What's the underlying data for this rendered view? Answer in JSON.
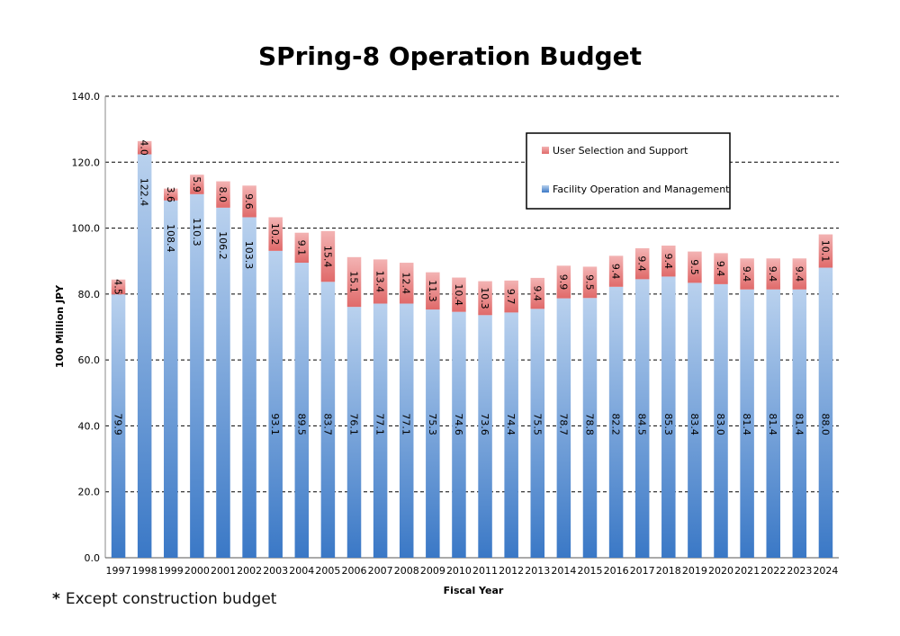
{
  "chart_data": {
    "type": "bar",
    "stacked": true,
    "title": "SPring-8 Operation Budget",
    "xlabel": "Fiscal Year",
    "ylabel": "100 Million JPY",
    "ylim": [
      0,
      140
    ],
    "yticks": [
      "0.0",
      "20.0",
      "40.0",
      "60.0",
      "80.0",
      "100.0",
      "120.0",
      "140.0"
    ],
    "grid": true,
    "legend_position": "top-right",
    "categories": [
      "1997",
      "1998",
      "1999",
      "2000",
      "2001",
      "2002",
      "2003",
      "2004",
      "2005",
      "2006",
      "2007",
      "2008",
      "2009",
      "2010",
      "2011",
      "2012",
      "2013",
      "2014",
      "2015",
      "2016",
      "2017",
      "2018",
      "2019",
      "2020",
      "2021",
      "2022",
      "2023",
      "2024"
    ],
    "series": [
      {
        "name": "Facility Operation and Management",
        "color": "#4a86cc",
        "values": [
          79.9,
          122.4,
          108.4,
          110.3,
          106.2,
          103.3,
          93.1,
          89.5,
          83.7,
          76.1,
          77.1,
          77.1,
          75.3,
          74.6,
          73.6,
          74.4,
          75.5,
          78.7,
          78.8,
          82.2,
          84.5,
          85.3,
          83.4,
          83.0,
          81.4,
          81.4,
          81.4,
          88.0
        ],
        "labels": [
          "79.9",
          "122.4",
          "108.4",
          "110.3",
          "106.2",
          "103.3",
          "93.1",
          "89.5",
          "83.7",
          "76.1",
          "77.1",
          "77.1",
          "75.3",
          "74.6",
          "73.6",
          "74.4",
          "75.5",
          "78.7",
          "78.8",
          "82.2",
          "84.5",
          "85.3",
          "83.4",
          "83.0",
          "81.4",
          "81.4",
          "81.4",
          "88.0"
        ]
      },
      {
        "name": "User Selection and Support",
        "color": "#e06666",
        "values": [
          4.5,
          4.0,
          3.6,
          5.9,
          8.0,
          9.6,
          10.2,
          9.1,
          15.4,
          15.1,
          13.4,
          12.4,
          11.3,
          10.4,
          10.3,
          9.7,
          9.4,
          9.9,
          9.5,
          9.4,
          9.4,
          9.4,
          9.5,
          9.4,
          9.4,
          9.4,
          9.4,
          10.1
        ],
        "labels": [
          "4.5",
          "4.0",
          "3.6",
          "5.9",
          "8.0",
          "9.6",
          "10.2",
          "9.1",
          "15.4",
          "15.1",
          "13.4",
          "12.4",
          "11.3",
          "10.4",
          "10.3",
          "9.7",
          "9.4",
          "9.9",
          "9.5",
          "9.4",
          "9.4",
          "9.4",
          "9.5",
          "9.4",
          "9.4",
          "9.4",
          "9.4",
          "10.1"
        ]
      }
    ]
  },
  "footnote": {
    "star": "*",
    "text": "Except construction budget"
  }
}
